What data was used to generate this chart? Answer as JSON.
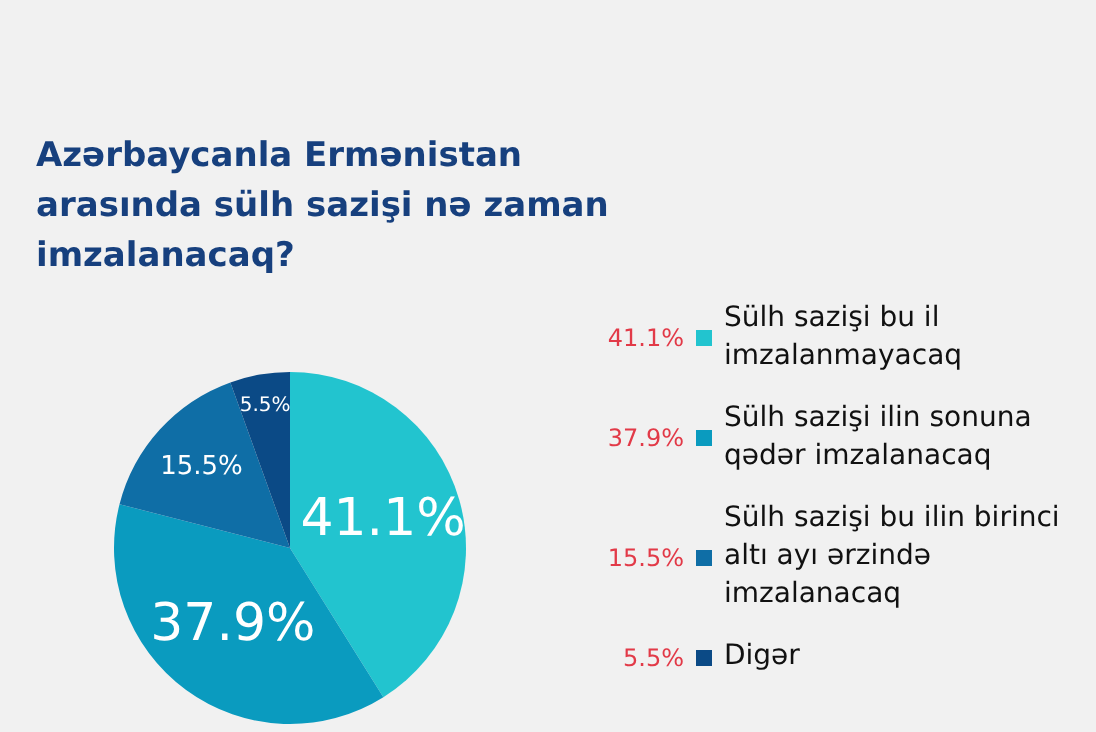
{
  "chart_data": {
    "type": "pie",
    "title": "Azərbaycanla Ermənistan arasında sülh sazişi nə zaman imzalanacaq?",
    "categories": [
      "Sülh sazişi bu il imzalanmayacaq",
      "Sülh sazişi ilin sonuna qədər imzalanacaq",
      "Sülh sazişi bu ilin birinci altı ayı ərzində imzalanacaq",
      "Digər"
    ],
    "values": [
      41.1,
      37.9,
      15.5,
      5.5
    ],
    "colors": [
      "#22c4cf",
      "#0a9bbf",
      "#0f6ea6",
      "#0b4a86"
    ],
    "value_labels": [
      "41.1%",
      "37.9%",
      "15.5%",
      "5.5%"
    ],
    "legend": "right"
  }
}
